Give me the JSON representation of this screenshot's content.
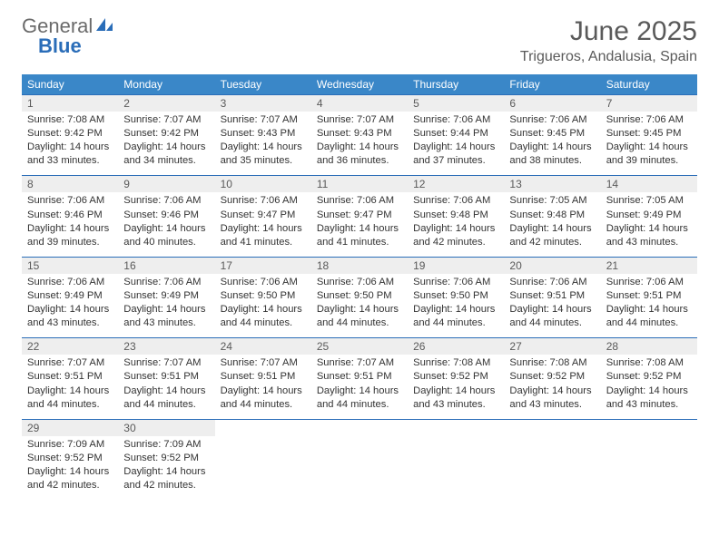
{
  "brand": {
    "general": "General",
    "blue": "Blue"
  },
  "title": "June 2025",
  "location": "Trigueros, Andalusia, Spain",
  "colors": {
    "header_bg": "#3a87c8",
    "header_text": "#ffffff",
    "daynum_bg": "#eeeeee",
    "row_divider": "#2a6db8",
    "text": "#333333",
    "title_text": "#5a5a5a",
    "logo_blue": "#2a6db8",
    "logo_gray": "#6b6b6b"
  },
  "fonts": {
    "title_size_pt": 22,
    "location_size_pt": 12,
    "header_size_pt": 9,
    "daynum_size_pt": 9,
    "cell_size_pt": 8.4
  },
  "weekdays": [
    "Sunday",
    "Monday",
    "Tuesday",
    "Wednesday",
    "Thursday",
    "Friday",
    "Saturday"
  ],
  "weeks": [
    [
      {
        "n": "1",
        "sunrise": "7:08 AM",
        "sunset": "9:42 PM",
        "day_h": "14",
        "day_m": "33"
      },
      {
        "n": "2",
        "sunrise": "7:07 AM",
        "sunset": "9:42 PM",
        "day_h": "14",
        "day_m": "34"
      },
      {
        "n": "3",
        "sunrise": "7:07 AM",
        "sunset": "9:43 PM",
        "day_h": "14",
        "day_m": "35"
      },
      {
        "n": "4",
        "sunrise": "7:07 AM",
        "sunset": "9:43 PM",
        "day_h": "14",
        "day_m": "36"
      },
      {
        "n": "5",
        "sunrise": "7:06 AM",
        "sunset": "9:44 PM",
        "day_h": "14",
        "day_m": "37"
      },
      {
        "n": "6",
        "sunrise": "7:06 AM",
        "sunset": "9:45 PM",
        "day_h": "14",
        "day_m": "38"
      },
      {
        "n": "7",
        "sunrise": "7:06 AM",
        "sunset": "9:45 PM",
        "day_h": "14",
        "day_m": "39"
      }
    ],
    [
      {
        "n": "8",
        "sunrise": "7:06 AM",
        "sunset": "9:46 PM",
        "day_h": "14",
        "day_m": "39"
      },
      {
        "n": "9",
        "sunrise": "7:06 AM",
        "sunset": "9:46 PM",
        "day_h": "14",
        "day_m": "40"
      },
      {
        "n": "10",
        "sunrise": "7:06 AM",
        "sunset": "9:47 PM",
        "day_h": "14",
        "day_m": "41"
      },
      {
        "n": "11",
        "sunrise": "7:06 AM",
        "sunset": "9:47 PM",
        "day_h": "14",
        "day_m": "41"
      },
      {
        "n": "12",
        "sunrise": "7:06 AM",
        "sunset": "9:48 PM",
        "day_h": "14",
        "day_m": "42"
      },
      {
        "n": "13",
        "sunrise": "7:05 AM",
        "sunset": "9:48 PM",
        "day_h": "14",
        "day_m": "42"
      },
      {
        "n": "14",
        "sunrise": "7:05 AM",
        "sunset": "9:49 PM",
        "day_h": "14",
        "day_m": "43"
      }
    ],
    [
      {
        "n": "15",
        "sunrise": "7:06 AM",
        "sunset": "9:49 PM",
        "day_h": "14",
        "day_m": "43"
      },
      {
        "n": "16",
        "sunrise": "7:06 AM",
        "sunset": "9:49 PM",
        "day_h": "14",
        "day_m": "43"
      },
      {
        "n": "17",
        "sunrise": "7:06 AM",
        "sunset": "9:50 PM",
        "day_h": "14",
        "day_m": "44"
      },
      {
        "n": "18",
        "sunrise": "7:06 AM",
        "sunset": "9:50 PM",
        "day_h": "14",
        "day_m": "44"
      },
      {
        "n": "19",
        "sunrise": "7:06 AM",
        "sunset": "9:50 PM",
        "day_h": "14",
        "day_m": "44"
      },
      {
        "n": "20",
        "sunrise": "7:06 AM",
        "sunset": "9:51 PM",
        "day_h": "14",
        "day_m": "44"
      },
      {
        "n": "21",
        "sunrise": "7:06 AM",
        "sunset": "9:51 PM",
        "day_h": "14",
        "day_m": "44"
      }
    ],
    [
      {
        "n": "22",
        "sunrise": "7:07 AM",
        "sunset": "9:51 PM",
        "day_h": "14",
        "day_m": "44"
      },
      {
        "n": "23",
        "sunrise": "7:07 AM",
        "sunset": "9:51 PM",
        "day_h": "14",
        "day_m": "44"
      },
      {
        "n": "24",
        "sunrise": "7:07 AM",
        "sunset": "9:51 PM",
        "day_h": "14",
        "day_m": "44"
      },
      {
        "n": "25",
        "sunrise": "7:07 AM",
        "sunset": "9:51 PM",
        "day_h": "14",
        "day_m": "44"
      },
      {
        "n": "26",
        "sunrise": "7:08 AM",
        "sunset": "9:52 PM",
        "day_h": "14",
        "day_m": "43"
      },
      {
        "n": "27",
        "sunrise": "7:08 AM",
        "sunset": "9:52 PM",
        "day_h": "14",
        "day_m": "43"
      },
      {
        "n": "28",
        "sunrise": "7:08 AM",
        "sunset": "9:52 PM",
        "day_h": "14",
        "day_m": "43"
      }
    ],
    [
      {
        "n": "29",
        "sunrise": "7:09 AM",
        "sunset": "9:52 PM",
        "day_h": "14",
        "day_m": "42"
      },
      {
        "n": "30",
        "sunrise": "7:09 AM",
        "sunset": "9:52 PM",
        "day_h": "14",
        "day_m": "42"
      },
      null,
      null,
      null,
      null,
      null
    ]
  ],
  "labels": {
    "sunrise": "Sunrise:",
    "sunset": "Sunset:",
    "daylight_prefix": "Daylight:",
    "hours": "hours",
    "and": "and",
    "minutes": "minutes."
  }
}
